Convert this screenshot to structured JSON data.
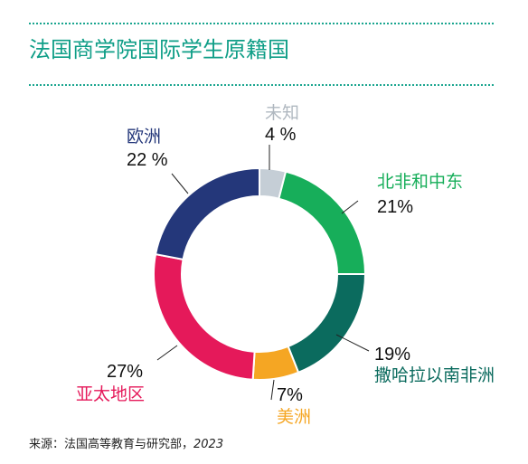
{
  "title": "法国商学院国际学生原籍国",
  "source": {
    "label": "来源：法国高等教育与研究部，",
    "year": "2023"
  },
  "chart_data": {
    "type": "pie",
    "donut": true,
    "title": "法国商学院国际学生原籍国",
    "slices": [
      {
        "label": "未知",
        "value": 4,
        "value_label": "4 %",
        "color": "#c5ced6"
      },
      {
        "label": "北非和中东",
        "value": 21,
        "value_label": "21%",
        "color": "#17ae5a"
      },
      {
        "label": "撒哈拉以南非洲",
        "value": 19,
        "value_label": "19%",
        "color": "#0b6b5e"
      },
      {
        "label": "美洲",
        "value": 7,
        "value_label": "7%",
        "color": "#f5a623"
      },
      {
        "label": "亚太地区",
        "value": 27,
        "value_label": "27%",
        "color": "#e5195a"
      },
      {
        "label": "欧洲",
        "value": 22,
        "value_label": "22 %",
        "color": "#24377a"
      }
    ],
    "start_angle_deg": 0,
    "direction": "clockwise",
    "legend": "none"
  }
}
